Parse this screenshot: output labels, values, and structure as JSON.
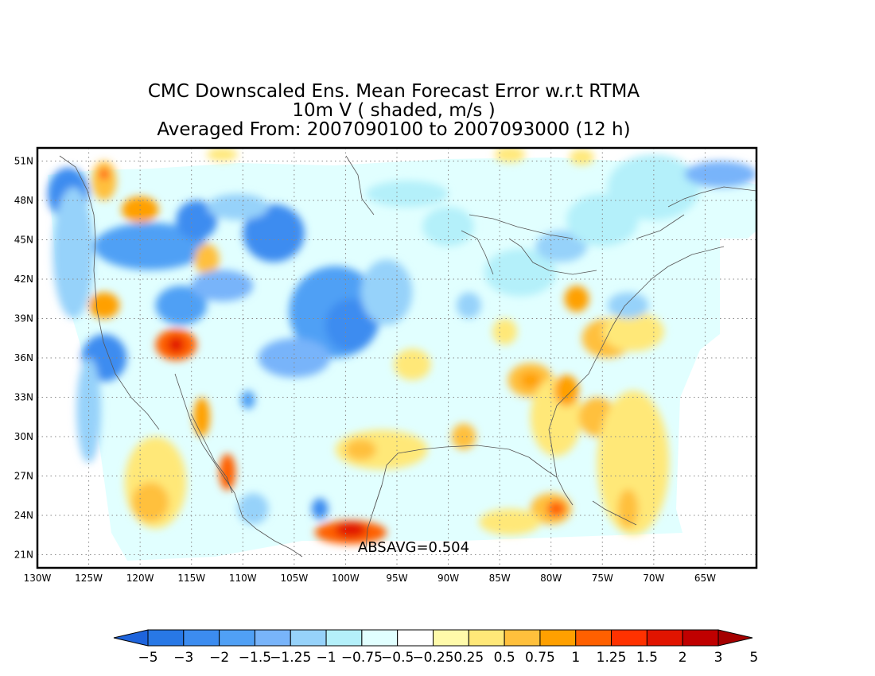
{
  "title": {
    "line1": "CMC Downscaled Ens. Mean Forecast Error w.r.t RTMA",
    "line2": "10m V ( shaded, m/s )",
    "line3": "Averaged From: 2007090100 to 2007093000 (12 h)"
  },
  "annotation": "ABSAVG=0.504",
  "map": {
    "lon_range": [
      -130,
      -60
    ],
    "lat_range": [
      20,
      52
    ],
    "grid": true,
    "lon_ticks": [
      -130,
      -125,
      -120,
      -115,
      -110,
      -105,
      -100,
      -95,
      -90,
      -85,
      -80,
      -75,
      -70,
      -65
    ],
    "lat_ticks": [
      21,
      24,
      27,
      30,
      33,
      36,
      39,
      42,
      45,
      48,
      51
    ],
    "lon_tick_labels": [
      "130W",
      "125W",
      "120W",
      "115W",
      "110W",
      "105W",
      "100W",
      "95W",
      "90W",
      "85W",
      "80W",
      "75W",
      "70W",
      "65W"
    ],
    "lat_tick_labels": [
      "21N",
      "24N",
      "27N",
      "30N",
      "33N",
      "36N",
      "39N",
      "42N",
      "45N",
      "48N",
      "51N"
    ]
  },
  "colorbar": {
    "labels": [
      "−5",
      "−3",
      "−2",
      "−1.5",
      "−1.25",
      "−1",
      "−0.75",
      "−0.5",
      "−0.25",
      "0.25",
      "0.5",
      "0.75",
      "1",
      "1.25",
      "1.5",
      "2",
      "3",
      "5"
    ],
    "colors": [
      "#1e64dc",
      "#2878e6",
      "#3c8cf0",
      "#50a0f5",
      "#78b4fa",
      "#96d2fa",
      "#b4f0fa",
      "#e1ffff",
      "#ffffff",
      "#fffaaa",
      "#ffe878",
      "#ffc03c",
      "#ffa000",
      "#ff6000",
      "#ff3200",
      "#e11400",
      "#c00000",
      "#a50000"
    ]
  },
  "features": [
    {
      "lon": -127,
      "lat": 48.5,
      "rx": 2.0,
      "ry": 2.0,
      "color": "#3c8cf0"
    },
    {
      "lon": -126.5,
      "lat": 44,
      "rx": 2.0,
      "ry": 5.0,
      "color": "#96d2fa"
    },
    {
      "lon": -123.5,
      "lat": 49.5,
      "rx": 1.2,
      "ry": 1.5,
      "color": "#ffc03c"
    },
    {
      "lon": -123.5,
      "lat": 50,
      "rx": 0.4,
      "ry": 0.4,
      "color": "#ff3200"
    },
    {
      "lon": -120,
      "lat": 47.3,
      "rx": 1.8,
      "ry": 1.0,
      "color": "#ffa000"
    },
    {
      "lon": -119,
      "lat": 44.5,
      "rx": 5.5,
      "ry": 1.8,
      "color": "#50a0f5"
    },
    {
      "lon": -114.5,
      "lat": 46.5,
      "rx": 2.0,
      "ry": 1.5,
      "color": "#3c8cf0"
    },
    {
      "lon": -113.5,
      "lat": 43.5,
      "rx": 1.2,
      "ry": 1.2,
      "color": "#ffc03c"
    },
    {
      "lon": -107,
      "lat": 45.5,
      "rx": 3.0,
      "ry": 2.2,
      "color": "#3c8cf0"
    },
    {
      "lon": -110.5,
      "lat": 47.5,
      "rx": 3.0,
      "ry": 1.0,
      "color": "#96d2fa"
    },
    {
      "lon": -123.5,
      "lat": 40,
      "rx": 1.5,
      "ry": 1.0,
      "color": "#ffa000"
    },
    {
      "lon": -123.5,
      "lat": 36,
      "rx": 2.2,
      "ry": 1.8,
      "color": "#3c8cf0"
    },
    {
      "lon": -125,
      "lat": 32,
      "rx": 1.2,
      "ry": 4.0,
      "color": "#96d2fa"
    },
    {
      "lon": -116.5,
      "lat": 37,
      "rx": 2.0,
      "ry": 1.2,
      "color": "#ff6000"
    },
    {
      "lon": -116.5,
      "lat": 37,
      "rx": 0.8,
      "ry": 0.6,
      "color": "#e11400"
    },
    {
      "lon": -116,
      "lat": 40,
      "rx": 2.5,
      "ry": 1.5,
      "color": "#50a0f5"
    },
    {
      "lon": -112,
      "lat": 41.5,
      "rx": 3.0,
      "ry": 1.2,
      "color": "#78b4fa"
    },
    {
      "lon": -101,
      "lat": 39.5,
      "rx": 4.5,
      "ry": 3.5,
      "color": "#50a0f5"
    },
    {
      "lon": -99.5,
      "lat": 38.5,
      "rx": 2.5,
      "ry": 2.0,
      "color": "#3c8cf0"
    },
    {
      "lon": -105,
      "lat": 36,
      "rx": 3.5,
      "ry": 1.5,
      "color": "#78b4fa"
    },
    {
      "lon": -96,
      "lat": 41,
      "rx": 2.5,
      "ry": 2.5,
      "color": "#96d2fa"
    },
    {
      "lon": -118.5,
      "lat": 26.5,
      "rx": 3.0,
      "ry": 3.5,
      "color": "#ffe878"
    },
    {
      "lon": -119,
      "lat": 25,
      "rx": 1.8,
      "ry": 1.5,
      "color": "#ffc03c"
    },
    {
      "lon": -111.5,
      "lat": 27.3,
      "rx": 0.8,
      "ry": 1.4,
      "color": "#ff6000"
    },
    {
      "lon": -114,
      "lat": 31.5,
      "rx": 0.8,
      "ry": 1.5,
      "color": "#ffa000"
    },
    {
      "lon": -109.5,
      "lat": 32.8,
      "rx": 0.7,
      "ry": 0.7,
      "color": "#50a0f5"
    },
    {
      "lon": -109,
      "lat": 24.5,
      "rx": 1.5,
      "ry": 1.2,
      "color": "#96d2fa"
    },
    {
      "lon": -102.5,
      "lat": 24.5,
      "rx": 0.8,
      "ry": 0.8,
      "color": "#3c8cf0"
    },
    {
      "lon": -99.5,
      "lat": 22.7,
      "rx": 3.5,
      "ry": 0.9,
      "color": "#ff6000"
    },
    {
      "lon": -99.5,
      "lat": 22.9,
      "rx": 1.5,
      "ry": 0.6,
      "color": "#e11400"
    },
    {
      "lon": -96.5,
      "lat": 29,
      "rx": 4.5,
      "ry": 1.5,
      "color": "#ffe878"
    },
    {
      "lon": -98.5,
      "lat": 29,
      "rx": 1.5,
      "ry": 0.8,
      "color": "#ffc03c"
    },
    {
      "lon": -93.5,
      "lat": 35.5,
      "rx": 1.8,
      "ry": 1.2,
      "color": "#ffe878"
    },
    {
      "lon": -88.5,
      "lat": 30,
      "rx": 1.2,
      "ry": 1.0,
      "color": "#ffc03c"
    },
    {
      "lon": -82,
      "lat": 34.3,
      "rx": 2.2,
      "ry": 1.3,
      "color": "#ffc03c"
    },
    {
      "lon": -82,
      "lat": 34.3,
      "rx": 1.0,
      "ry": 0.6,
      "color": "#ffa000"
    },
    {
      "lon": -79.5,
      "lat": 31.5,
      "rx": 2.5,
      "ry": 3.0,
      "color": "#ffe878"
    },
    {
      "lon": -78.5,
      "lat": 33.5,
      "rx": 1.2,
      "ry": 1.2,
      "color": "#ffa000"
    },
    {
      "lon": -75.5,
      "lat": 31.5,
      "rx": 1.8,
      "ry": 1.5,
      "color": "#ffc03c"
    },
    {
      "lon": -72,
      "lat": 28,
      "rx": 3.5,
      "ry": 5.5,
      "color": "#ffe878"
    },
    {
      "lon": -72.5,
      "lat": 24.5,
      "rx": 1.0,
      "ry": 1.5,
      "color": "#ffc03c"
    },
    {
      "lon": -80,
      "lat": 24.5,
      "rx": 2.0,
      "ry": 1.2,
      "color": "#ffc03c"
    },
    {
      "lon": -79.5,
      "lat": 24.5,
      "rx": 0.9,
      "ry": 0.6,
      "color": "#ff6000"
    },
    {
      "lon": -84,
      "lat": 23.5,
      "rx": 3.0,
      "ry": 1.0,
      "color": "#ffe878"
    },
    {
      "lon": -74.5,
      "lat": 37.5,
      "rx": 2.5,
      "ry": 1.5,
      "color": "#ffc03c"
    },
    {
      "lon": -72,
      "lat": 38,
      "rx": 3.0,
      "ry": 1.5,
      "color": "#ffe878"
    },
    {
      "lon": -72.5,
      "lat": 40,
      "rx": 2.0,
      "ry": 1.0,
      "color": "#96d2fa"
    },
    {
      "lon": -77.5,
      "lat": 40.5,
      "rx": 1.2,
      "ry": 1.0,
      "color": "#ffa000"
    },
    {
      "lon": -84.5,
      "lat": 38,
      "rx": 1.2,
      "ry": 1.0,
      "color": "#ffe878"
    },
    {
      "lon": -88,
      "lat": 40,
      "rx": 1.2,
      "ry": 1.0,
      "color": "#96d2fa"
    },
    {
      "lon": -83,
      "lat": 42.5,
      "rx": 3.5,
      "ry": 1.8,
      "color": "#b4f0fa"
    },
    {
      "lon": -79,
      "lat": 44.5,
      "rx": 2.5,
      "ry": 1.2,
      "color": "#96d2fa"
    },
    {
      "lon": -70,
      "lat": 49,
      "rx": 4.5,
      "ry": 2.5,
      "color": "#b4f0fa"
    },
    {
      "lon": -63.5,
      "lat": 50,
      "rx": 3.5,
      "ry": 1.0,
      "color": "#78b4fa"
    },
    {
      "lon": -75,
      "lat": 46.5,
      "rx": 3.5,
      "ry": 2.0,
      "color": "#b4f0fa"
    },
    {
      "lon": -94,
      "lat": 48.5,
      "rx": 4.0,
      "ry": 1.0,
      "color": "#b4f0fa"
    },
    {
      "lon": -84,
      "lat": 51.5,
      "rx": 1.5,
      "ry": 0.6,
      "color": "#ffe878"
    },
    {
      "lon": -77,
      "lat": 51.3,
      "rx": 1.2,
      "ry": 0.6,
      "color": "#ffe878"
    },
    {
      "lon": -112,
      "lat": 51.5,
      "rx": 1.5,
      "ry": 0.5,
      "color": "#ffe878"
    },
    {
      "lon": -90,
      "lat": 46,
      "rx": 2.5,
      "ry": 1.5,
      "color": "#b4f0fa"
    }
  ]
}
